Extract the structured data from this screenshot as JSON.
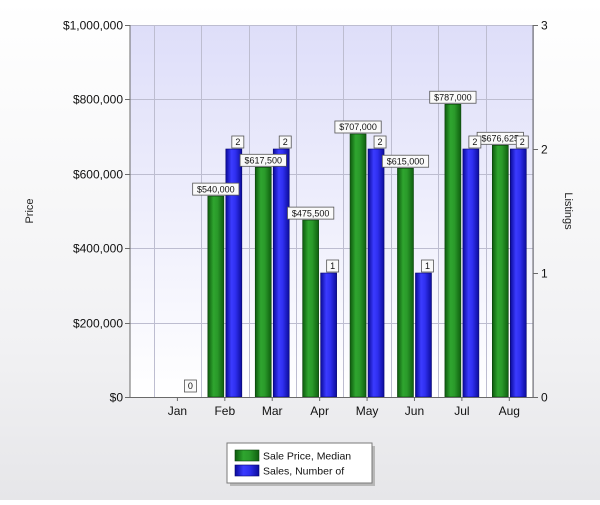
{
  "chart_data": {
    "type": "bar",
    "categories": [
      "Jan",
      "Feb",
      "Mar",
      "Apr",
      "May",
      "Jun",
      "Jul",
      "Aug"
    ],
    "ylabel": "Price",
    "y2label": "Listings",
    "ylim": [
      0,
      1000000
    ],
    "y2lim": [
      0,
      3
    ],
    "yticks": [
      "$0",
      "$200,000",
      "$400,000",
      "$600,000",
      "$800,000",
      "$1,000,000"
    ],
    "y2ticks": [
      "0",
      "1",
      "2",
      "3"
    ],
    "grid": true,
    "legend_position": "bottom-center",
    "series": [
      {
        "name": "Sale Price, Median",
        "axis": "left",
        "color": "#1f8a1f",
        "values": [
          null,
          540000,
          617500,
          475500,
          707000,
          615000,
          787000,
          676625
        ],
        "labels": [
          "",
          "$540,000",
          "$617,500",
          "$475,500",
          "$707,000",
          "$615,000",
          "$787,000",
          "$676,625"
        ]
      },
      {
        "name": "Sales, Number of",
        "axis": "right",
        "color": "#2a2ae6",
        "values": [
          0,
          2,
          2,
          1,
          2,
          1,
          2,
          2
        ],
        "labels": [
          "0",
          "2",
          "2",
          "1",
          "2",
          "1",
          "2",
          "2"
        ]
      }
    ]
  }
}
